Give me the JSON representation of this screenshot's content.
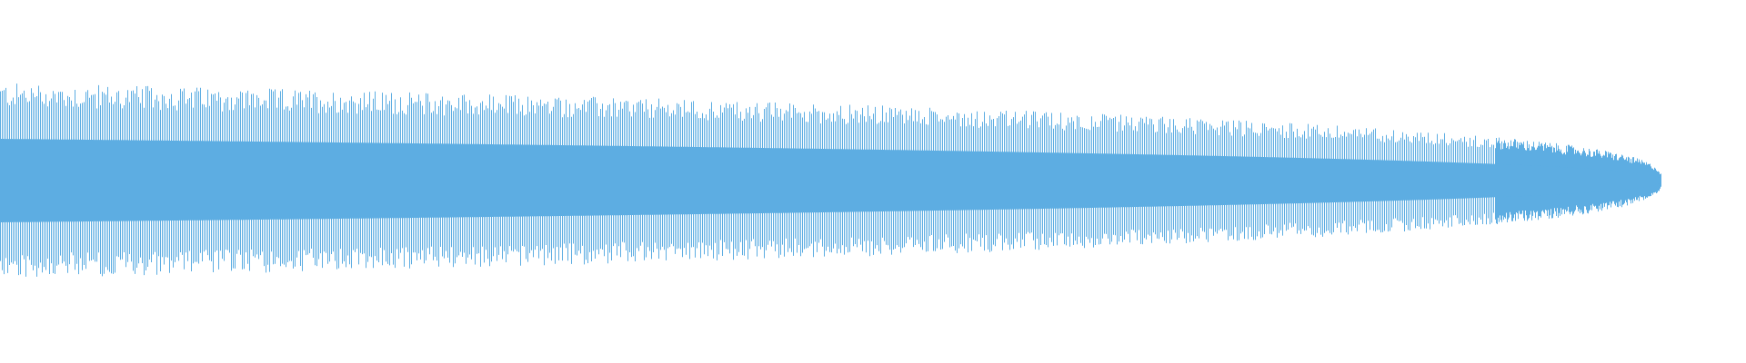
{
  "waveform": {
    "color": "#5DADE2",
    "background": "#FFFFFF"
  }
}
